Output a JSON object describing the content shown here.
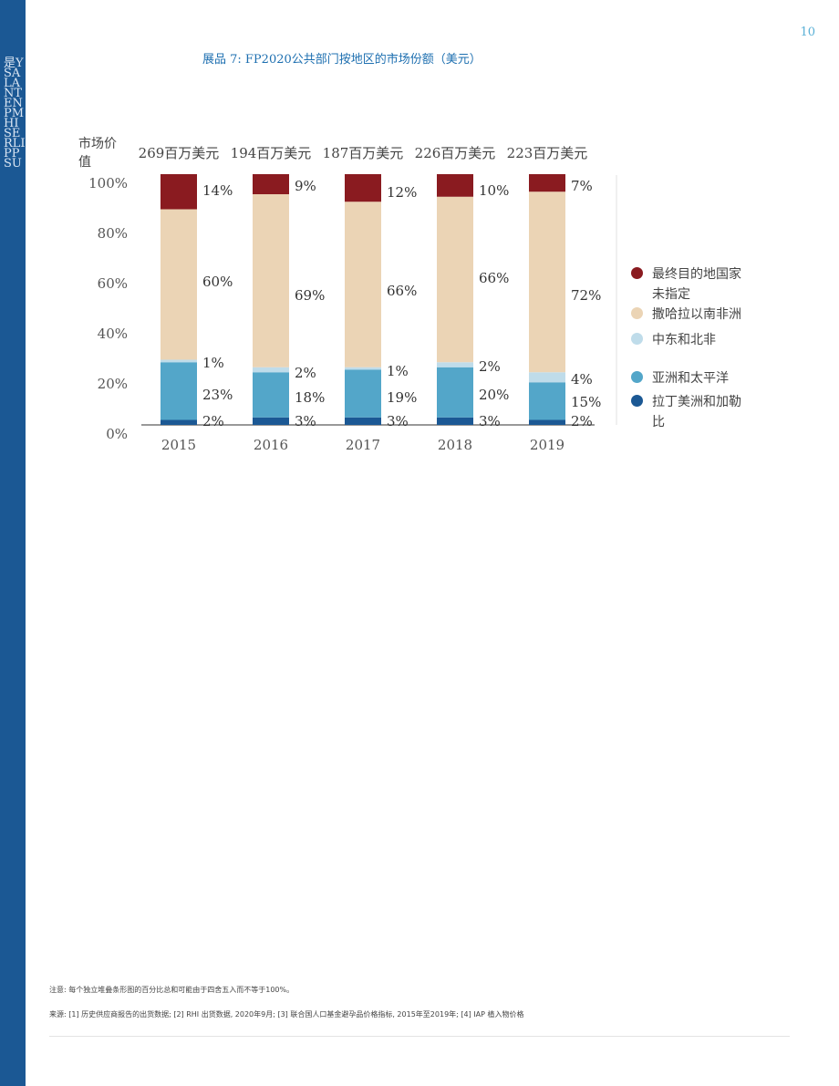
{
  "sidebar": {
    "text": "是YSALANTENPMHISERLIPPSU"
  },
  "page_number": "10",
  "chart_title": "展品 7: FP2020公共部门按地区的市场份额（美元）",
  "colors": {
    "sidebar": "#1b5894",
    "unspecified": "#8a1b20",
    "ssa": "#ebd4b5",
    "mena": "#bfdcea",
    "apac": "#53a6c9",
    "lac": "#1b5894"
  },
  "chart_data": {
    "type": "bar",
    "stacked": true,
    "title": "展品 7: FP2020公共部门按地区的市场份额（美元）",
    "ylabel": "市场价值",
    "xlabel": "",
    "categories": [
      "2015",
      "2016",
      "2017",
      "2018",
      "2019"
    ],
    "totals": [
      "269百万美元",
      "194百万美元",
      "187百万美元",
      "226百万美元",
      "223百万美元"
    ],
    "y_ticks": [
      "0%",
      "20%",
      "40%",
      "60%",
      "80%",
      "100%"
    ],
    "ylim": [
      0,
      100
    ],
    "legend_position": "right",
    "series": [
      {
        "name": "拉丁美洲和加勒比",
        "color": "#1b5894",
        "values": [
          2,
          3,
          3,
          3,
          2
        ],
        "labels": [
          "2%",
          "3%",
          "3%",
          "3%",
          "2%"
        ]
      },
      {
        "name": "亚洲和太平洋",
        "color": "#53a6c9",
        "values": [
          23,
          18,
          19,
          20,
          15
        ],
        "labels": [
          "23%",
          "18%",
          "19%",
          "20%",
          "15%"
        ]
      },
      {
        "name": "中东和北非",
        "color": "#bfdcea",
        "values": [
          1,
          2,
          1,
          2,
          4
        ],
        "labels": [
          "1%",
          "2%",
          "1%",
          "2%",
          "4%"
        ]
      },
      {
        "name": "撒哈拉以南非洲",
        "color": "#ebd4b5",
        "values": [
          60,
          69,
          66,
          66,
          72
        ],
        "labels": [
          "60%",
          "69%",
          "66%",
          "66%",
          "72%"
        ]
      },
      {
        "name": "最终目的地国家未指定",
        "color": "#8a1b20",
        "values": [
          14,
          9,
          12,
          10,
          7
        ],
        "labels": [
          "14%",
          "9%",
          "12%",
          "10%",
          "7%"
        ]
      }
    ]
  },
  "legend": [
    {
      "label": "最终目的地国家未指定",
      "color": "#8a1b20"
    },
    {
      "label": "撒哈拉以南非洲",
      "color": "#ebd4b5"
    },
    {
      "label": "中东和北非",
      "color": "#bfdcea"
    },
    {
      "label": "亚洲和太平洋",
      "color": "#53a6c9"
    },
    {
      "label": "拉丁美洲和加勒比",
      "color": "#1b5894"
    }
  ],
  "notes": {
    "note": "注意: 每个独立堆叠条形图的百分比总和可能由于四舍五入而不等于100%。",
    "source": "来源: [1] 历史供应商报告的出货数据; [2] RHI 出货数据, 2020年9月; [3] 联合国人口基金避孕品价格指标, 2015年至2019年; [4] IAP 植入物价格"
  }
}
